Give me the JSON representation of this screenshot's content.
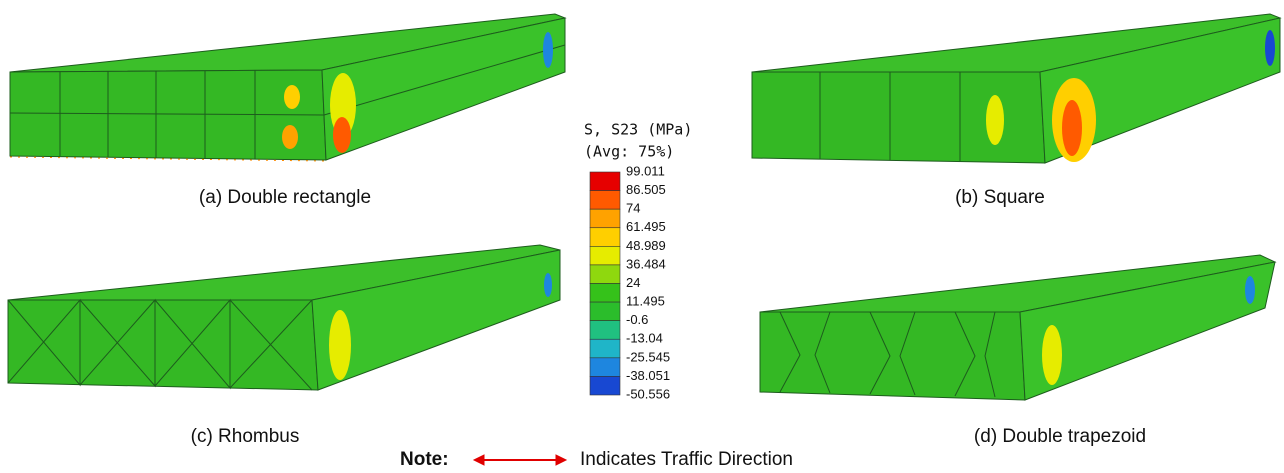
{
  "captions": [
    "(a) Double rectangle",
    "(b) Square",
    "(c) Rhombus",
    "(d) Double trapezoid"
  ],
  "legend": {
    "title": "S, S23 (MPa)",
    "subtitle": "(Avg: 75%)",
    "labels": [
      "99.011",
      "86.505",
      "74",
      "61.495",
      "48.989",
      "36.484",
      "24",
      "11.495",
      "-0.6",
      "-13.04",
      "-25.545",
      "-38.051",
      "-50.556"
    ],
    "colors": [
      "#e60000",
      "#ff5a00",
      "#ffa200",
      "#ffcf00",
      "#e6ec00",
      "#8fd80e",
      "#35c21a",
      "#2bbd2b",
      "#20c080",
      "#1fb5c8",
      "#1e86df",
      "#1848d2",
      "#0a14b4"
    ]
  },
  "note": {
    "label": "Note:",
    "text": "Indicates Traffic Direction"
  }
}
